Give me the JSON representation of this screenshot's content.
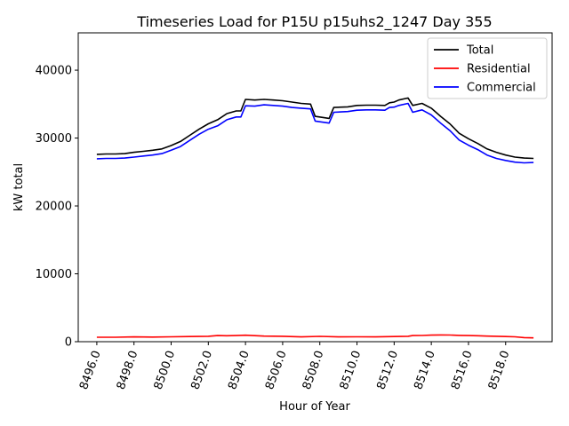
{
  "chart_data": {
    "type": "line",
    "title": "Timeseries Load for P15U p15uhs2_1247  Day 355",
    "xlabel": "Hour of Year",
    "ylabel": "kW total",
    "xlim": [
      8495,
      8520.5
    ],
    "ylim": [
      0,
      45500
    ],
    "x_ticks": [
      8496,
      8498,
      8500,
      8502,
      8504,
      8506,
      8508,
      8510,
      8512,
      8514,
      8516,
      8518
    ],
    "x_tick_labels": [
      "8496.0",
      "8498.0",
      "8500.0",
      "8502.0",
      "8504.0",
      "8506.0",
      "8508.0",
      "8510.0",
      "8512.0",
      "8514.0",
      "8516.0",
      "8518.0"
    ],
    "y_ticks": [
      0,
      10000,
      20000,
      30000,
      40000
    ],
    "y_tick_labels": [
      "0",
      "10000",
      "20000",
      "30000",
      "40000"
    ],
    "grid": false,
    "legend_position": "top-right",
    "series": [
      {
        "name": "Total",
        "color": "#000000",
        "points": [
          [
            8496,
            27600
          ],
          [
            8496.5,
            27650
          ],
          [
            8497,
            27650
          ],
          [
            8497.5,
            27700
          ],
          [
            8498,
            27900
          ],
          [
            8498.5,
            28050
          ],
          [
            8499,
            28200
          ],
          [
            8499.5,
            28400
          ],
          [
            8500,
            28900
          ],
          [
            8500.5,
            29500
          ],
          [
            8501,
            30400
          ],
          [
            8501.5,
            31300
          ],
          [
            8502,
            32100
          ],
          [
            8502.5,
            32700
          ],
          [
            8503,
            33600
          ],
          [
            8503.5,
            34000
          ],
          [
            8503.75,
            34000
          ],
          [
            8504,
            35700
          ],
          [
            8504.5,
            35600
          ],
          [
            8505,
            35700
          ],
          [
            8505.5,
            35600
          ],
          [
            8506,
            35500
          ],
          [
            8506.5,
            35300
          ],
          [
            8507,
            35100
          ],
          [
            8507.5,
            35000
          ],
          [
            8507.75,
            33200
          ],
          [
            8508.5,
            32900
          ],
          [
            8508.75,
            34500
          ],
          [
            8509.5,
            34600
          ],
          [
            8510,
            34800
          ],
          [
            8510.5,
            34850
          ],
          [
            8511,
            34850
          ],
          [
            8511.5,
            34800
          ],
          [
            8511.75,
            35200
          ],
          [
            8512,
            35300
          ],
          [
            8512.25,
            35600
          ],
          [
            8512.75,
            35900
          ],
          [
            8513,
            34800
          ],
          [
            8513.5,
            35100
          ],
          [
            8514,
            34400
          ],
          [
            8514.5,
            33200
          ],
          [
            8515,
            32100
          ],
          [
            8515.5,
            30700
          ],
          [
            8516,
            29900
          ],
          [
            8516.5,
            29200
          ],
          [
            8517,
            28400
          ],
          [
            8517.5,
            27900
          ],
          [
            8518,
            27500
          ],
          [
            8518.5,
            27200
          ],
          [
            8519,
            27050
          ],
          [
            8519.5,
            27000
          ]
        ]
      },
      {
        "name": "Residential",
        "color": "#ff0000",
        "points": [
          [
            8496,
            650
          ],
          [
            8497,
            650
          ],
          [
            8498,
            700
          ],
          [
            8499,
            680
          ],
          [
            8500,
            720
          ],
          [
            8501,
            760
          ],
          [
            8502,
            800
          ],
          [
            8502.5,
            900
          ],
          [
            8503,
            880
          ],
          [
            8503.5,
            900
          ],
          [
            8504,
            950
          ],
          [
            8505,
            820
          ],
          [
            8506,
            800
          ],
          [
            8507,
            700
          ],
          [
            8508,
            780
          ],
          [
            8509,
            700
          ],
          [
            8510,
            720
          ],
          [
            8511,
            700
          ],
          [
            8512,
            760
          ],
          [
            8512.75,
            800
          ],
          [
            8513,
            900
          ],
          [
            8513.5,
            920
          ],
          [
            8514,
            970
          ],
          [
            8514.5,
            1000
          ],
          [
            8515,
            980
          ],
          [
            8515.5,
            930
          ],
          [
            8516,
            900
          ],
          [
            8516.5,
            870
          ],
          [
            8517,
            830
          ],
          [
            8517.5,
            800
          ],
          [
            8518,
            760
          ],
          [
            8518.5,
            720
          ],
          [
            8519,
            600
          ],
          [
            8519.5,
            560
          ]
        ]
      },
      {
        "name": "Commercial",
        "color": "#0000ff",
        "points": [
          [
            8496,
            26950
          ],
          [
            8496.5,
            27000
          ],
          [
            8497,
            27000
          ],
          [
            8497.5,
            27050
          ],
          [
            8498,
            27200
          ],
          [
            8498.5,
            27350
          ],
          [
            8499,
            27500
          ],
          [
            8499.5,
            27700
          ],
          [
            8500,
            28200
          ],
          [
            8500.5,
            28750
          ],
          [
            8501,
            29650
          ],
          [
            8501.5,
            30550
          ],
          [
            8502,
            31300
          ],
          [
            8502.5,
            31800
          ],
          [
            8503,
            32700
          ],
          [
            8503.5,
            33100
          ],
          [
            8503.75,
            33100
          ],
          [
            8504,
            34750
          ],
          [
            8504.5,
            34700
          ],
          [
            8505,
            34900
          ],
          [
            8505.5,
            34800
          ],
          [
            8506,
            34700
          ],
          [
            8506.5,
            34500
          ],
          [
            8507,
            34400
          ],
          [
            8507.5,
            34300
          ],
          [
            8507.75,
            32500
          ],
          [
            8508.5,
            32200
          ],
          [
            8508.75,
            33800
          ],
          [
            8509.5,
            33900
          ],
          [
            8510,
            34100
          ],
          [
            8510.5,
            34150
          ],
          [
            8511,
            34150
          ],
          [
            8511.5,
            34100
          ],
          [
            8511.75,
            34500
          ],
          [
            8512,
            34550
          ],
          [
            8512.25,
            34800
          ],
          [
            8512.75,
            35100
          ],
          [
            8513,
            33800
          ],
          [
            8513.5,
            34150
          ],
          [
            8514,
            33400
          ],
          [
            8514.5,
            32200
          ],
          [
            8515,
            31100
          ],
          [
            8515.5,
            29700
          ],
          [
            8516,
            28950
          ],
          [
            8516.5,
            28300
          ],
          [
            8517,
            27500
          ],
          [
            8517.5,
            27000
          ],
          [
            8518,
            26700
          ],
          [
            8518.5,
            26450
          ],
          [
            8519,
            26350
          ],
          [
            8519.5,
            26400
          ]
        ]
      }
    ]
  }
}
